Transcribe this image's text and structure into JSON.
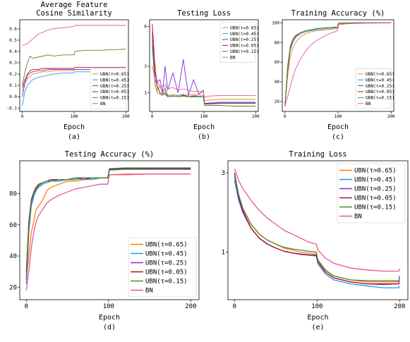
{
  "figure": {
    "panels": [
      {
        "id": "a",
        "title": [
          "Average Feature",
          "Cosine Similarity"
        ],
        "xlabel": "Epoch",
        "caption": "(a)",
        "xlim": [
          -5,
          205
        ],
        "ylim": [
          -0.13,
          0.68
        ],
        "xticks": [
          0,
          100,
          200
        ],
        "yticks": [
          -0.1,
          0.0,
          0.1,
          0.2,
          0.3,
          0.4,
          0.5,
          0.6
        ],
        "ytick_labels": [
          "-0.1",
          "0.0",
          "0.1",
          "0.2",
          "0.3",
          "0.4",
          "0.5",
          "0.6"
        ],
        "legend_position": "bottom-right"
      },
      {
        "id": "b",
        "title": [
          "Testing Loss"
        ],
        "xlabel": "Epoch",
        "caption": "(b)",
        "xlim": [
          -5,
          205
        ],
        "ylim": [
          -0.4,
          6.5
        ],
        "xticks": [
          0,
          100,
          200
        ],
        "yticks": [
          1,
          3,
          6
        ],
        "ytick_labels": [
          "1",
          "3",
          "6"
        ],
        "legend_position": "top-right"
      },
      {
        "id": "c",
        "title": [
          "Training Accuracy (%)"
        ],
        "xlabel": "Epoch",
        "caption": "(c)",
        "xlim": [
          -5,
          205
        ],
        "ylim": [
          10,
          103
        ],
        "xticks": [
          0,
          100,
          200
        ],
        "yticks": [
          20,
          40,
          60,
          80,
          100
        ],
        "ytick_labels": [
          "20",
          "40",
          "60",
          "80",
          "100"
        ],
        "legend_position": "bottom-right"
      },
      {
        "id": "d",
        "title": [
          "Testing Accuracy (%)"
        ],
        "xlabel": "Epoch",
        "caption": "(d)",
        "xlim": [
          -8,
          210
        ],
        "ylim": [
          12,
          101
        ],
        "xticks": [
          0,
          100,
          200
        ],
        "yticks": [
          20,
          40,
          60,
          80
        ],
        "ytick_labels": [
          "20",
          "40",
          "60",
          "80"
        ],
        "legend_position": "bottom-right"
      },
      {
        "id": "e",
        "title": [
          "Training Loss"
        ],
        "xlabel": "Epoch",
        "caption": "(e)",
        "xlim": [
          -8,
          210
        ],
        "ylim": [
          -0.2,
          3.3
        ],
        "xticks": [
          0,
          100,
          200
        ],
        "yticks": [
          1,
          3
        ],
        "ytick_labels": [
          "1",
          "3"
        ],
        "legend_position": "top-right"
      }
    ]
  },
  "chart_data": [
    {
      "panel": "a",
      "type": "line",
      "title": "Average Feature Cosine Similarity",
      "xlabel": "Epoch",
      "ylabel": "",
      "x": [
        0,
        5,
        10,
        15,
        20,
        30,
        40,
        50,
        60,
        80,
        100,
        101,
        120,
        150,
        200
      ],
      "ylim": [
        -0.13,
        0.68
      ],
      "series": [
        {
          "name": "UBN(τ=0.65)",
          "color": "#ff7f0e",
          "values": [
            0.05,
            0.12,
            0.16,
            0.18,
            0.2,
            0.21,
            0.22,
            0.22,
            0.23,
            0.23,
            0.23,
            0.24,
            0.24,
            0.24,
            0.24
          ]
        },
        {
          "name": "UBN(τ=0.45)",
          "color": "#1f9fe0",
          "values": [
            -0.08,
            0.05,
            0.1,
            0.13,
            0.15,
            0.17,
            0.18,
            0.19,
            0.2,
            0.21,
            0.21,
            0.22,
            0.22,
            0.22,
            0.22
          ]
        },
        {
          "name": "UBN(τ=0.25)",
          "color": "#7b2fd8",
          "values": [
            0.0,
            0.12,
            0.19,
            0.21,
            0.22,
            0.23,
            0.23,
            0.24,
            0.24,
            0.24,
            0.24,
            0.24,
            0.24,
            0.24,
            0.24
          ]
        },
        {
          "name": "UBN(τ=0.05)",
          "color": "#b0102a",
          "values": [
            0.08,
            0.15,
            0.2,
            0.23,
            0.24,
            0.24,
            0.25,
            0.25,
            0.25,
            0.25,
            0.25,
            0.26,
            0.26,
            0.26,
            0.26
          ]
        },
        {
          "name": "UBN(τ=0.15)",
          "color": "#4a8a2a",
          "values": [
            0.1,
            0.22,
            0.3,
            0.36,
            0.34,
            0.35,
            0.36,
            0.37,
            0.36,
            0.37,
            0.37,
            0.4,
            0.41,
            0.41,
            0.42
          ]
        },
        {
          "name": "BN",
          "color": "#e8549a",
          "values": [
            0.45,
            0.46,
            0.47,
            0.49,
            0.51,
            0.55,
            0.57,
            0.59,
            0.6,
            0.61,
            0.62,
            0.63,
            0.63,
            0.63,
            0.63
          ]
        }
      ]
    },
    {
      "panel": "b",
      "type": "line",
      "title": "Testing Loss",
      "xlabel": "Epoch",
      "ylabel": "",
      "x": [
        0,
        3,
        6,
        10,
        15,
        20,
        25,
        30,
        40,
        50,
        60,
        70,
        80,
        90,
        99,
        101,
        110,
        130,
        160,
        200
      ],
      "ylim": [
        -0.4,
        6.5
      ],
      "series": [
        {
          "name": "UBN(τ=0.65)",
          "color": "#ff7f0e",
          "values": [
            6.0,
            4.0,
            3.0,
            1.2,
            1.5,
            1.0,
            1.2,
            0.8,
            0.9,
            0.8,
            0.85,
            0.8,
            0.9,
            0.85,
            0.8,
            0.4,
            0.45,
            0.5,
            0.5,
            0.5
          ]
        },
        {
          "name": "UBN(τ=0.45)",
          "color": "#1f9fe0",
          "values": [
            5.0,
            3.5,
            2.0,
            1.5,
            1.0,
            0.9,
            1.4,
            0.8,
            0.7,
            0.8,
            0.9,
            0.7,
            0.8,
            0.75,
            0.7,
            0.2,
            0.25,
            0.3,
            0.3,
            0.3
          ]
        },
        {
          "name": "UBN(τ=0.25)",
          "color": "#7b2fd8",
          "values": [
            5.5,
            3.0,
            2.5,
            1.8,
            2.0,
            1.0,
            3.0,
            1.2,
            2.5,
            1.0,
            3.5,
            0.8,
            2.0,
            0.9,
            1.2,
            0.2,
            0.2,
            0.25,
            0.25,
            0.25
          ]
        },
        {
          "name": "UBN(τ=0.05)",
          "color": "#b0102a",
          "values": [
            6.2,
            4.5,
            2.0,
            1.5,
            1.0,
            0.9,
            1.0,
            0.7,
            0.8,
            0.7,
            0.8,
            0.7,
            0.75,
            0.7,
            0.7,
            0.15,
            0.15,
            0.2,
            0.2,
            0.2
          ]
        },
        {
          "name": "UBN(τ=0.15)",
          "color": "#4a8a2a",
          "values": [
            4.5,
            3.0,
            1.5,
            1.0,
            0.9,
            0.8,
            0.9,
            0.7,
            0.8,
            0.7,
            0.75,
            0.7,
            0.7,
            0.7,
            0.7,
            0.05,
            0.05,
            0.05,
            0.0,
            0.0
          ]
        },
        {
          "name": "BN",
          "color": "#e8549a",
          "values": [
            3.0,
            2.5,
            2.0,
            1.8,
            1.5,
            1.5,
            1.6,
            1.3,
            1.4,
            1.2,
            1.3,
            1.2,
            1.1,
            1.1,
            1.0,
            0.7,
            0.75,
            0.8,
            0.8,
            0.8
          ]
        }
      ]
    },
    {
      "panel": "c",
      "type": "line",
      "title": "Training Accuracy (%)",
      "xlabel": "Epoch",
      "ylabel": "",
      "x": [
        0,
        5,
        10,
        15,
        20,
        30,
        40,
        50,
        60,
        80,
        99,
        101,
        120,
        150,
        200
      ],
      "ylim": [
        10,
        103
      ],
      "series": [
        {
          "name": "UBN(τ=0.65)",
          "color": "#ff7f0e",
          "values": [
            15,
            45,
            65,
            74,
            80,
            86,
            89,
            91,
            92,
            93,
            94,
            99,
            99.5,
            99.7,
            99.8
          ]
        },
        {
          "name": "UBN(τ=0.45)",
          "color": "#1f9fe0",
          "values": [
            15,
            50,
            72,
            80,
            85,
            89,
            91,
            92,
            93,
            94,
            95,
            99.5,
            99.7,
            99.8,
            99.9
          ]
        },
        {
          "name": "UBN(τ=0.25)",
          "color": "#7b2fd8",
          "values": [
            15,
            52,
            74,
            82,
            86,
            90,
            92,
            93,
            94,
            95,
            95.5,
            99.6,
            99.8,
            99.9,
            99.9
          ]
        },
        {
          "name": "UBN(τ=0.05)",
          "color": "#b0102a",
          "values": [
            15,
            55,
            76,
            83,
            87,
            90,
            92,
            93,
            94,
            95,
            95.5,
            99.6,
            99.8,
            99.9,
            99.9
          ]
        },
        {
          "name": "UBN(τ=0.15)",
          "color": "#4a8a2a",
          "values": [
            15,
            53,
            75,
            82,
            86,
            90,
            92,
            93,
            94,
            95,
            95.5,
            99.6,
            99.8,
            99.9,
            99.9
          ]
        },
        {
          "name": "BN",
          "color": "#e8549a",
          "values": [
            15,
            25,
            35,
            45,
            53,
            64,
            72,
            78,
            82,
            88,
            92,
            98,
            99,
            99.5,
            99.8
          ]
        }
      ]
    },
    {
      "panel": "d",
      "type": "line",
      "title": "Testing Accuracy (%)",
      "xlabel": "Epoch",
      "ylabel": "",
      "x": [
        0,
        3,
        6,
        9,
        12,
        15,
        20,
        25,
        30,
        40,
        50,
        60,
        70,
        80,
        90,
        99,
        101,
        120,
        150,
        200
      ],
      "ylim": [
        12,
        101
      ],
      "series": [
        {
          "name": "UBN(τ=0.65)",
          "color": "#ff7f0e",
          "values": [
            25,
            40,
            55,
            62,
            70,
            72,
            76,
            82,
            84,
            86,
            88,
            88,
            89,
            89,
            90,
            90,
            92,
            92.5,
            92.5,
            92.5
          ]
        },
        {
          "name": "UBN(τ=0.45)",
          "color": "#1f9fe0",
          "values": [
            22,
            55,
            72,
            78,
            82,
            84,
            86,
            87,
            88,
            88,
            89,
            89,
            90,
            89,
            90,
            90,
            95,
            95.5,
            95.5,
            95.5
          ]
        },
        {
          "name": "UBN(τ=0.25)",
          "color": "#7b2fd8",
          "values": [
            25,
            58,
            74,
            80,
            83,
            85,
            87,
            88,
            88,
            89,
            89,
            90,
            89,
            90,
            90,
            90,
            95.5,
            96,
            96,
            96
          ]
        },
        {
          "name": "UBN(τ=0.05)",
          "color": "#b0102a",
          "values": [
            30,
            62,
            76,
            81,
            84,
            86,
            87,
            88,
            89,
            89,
            89,
            90,
            90,
            90,
            90,
            90,
            95.5,
            96,
            96,
            96
          ]
        },
        {
          "name": "UBN(τ=0.15)",
          "color": "#4a8a2a",
          "values": [
            28,
            60,
            75,
            80,
            83,
            85,
            87,
            88,
            88,
            89,
            89,
            90,
            90,
            90,
            90,
            90,
            96,
            96.5,
            96.5,
            96.5
          ]
        },
        {
          "name": "BN",
          "color": "#e8549a",
          "values": [
            18,
            30,
            45,
            55,
            62,
            66,
            70,
            74,
            76,
            79,
            81,
            83,
            84,
            85,
            86,
            86,
            92,
            92,
            92.5,
            92.5
          ]
        }
      ]
    },
    {
      "panel": "e",
      "type": "line",
      "title": "Training Loss",
      "xlabel": "Epoch",
      "ylabel": "",
      "x": [
        0,
        5,
        10,
        20,
        30,
        40,
        50,
        60,
        70,
        80,
        90,
        99,
        101,
        110,
        120,
        140,
        160,
        180,
        199,
        200
      ],
      "ylim": [
        -0.2,
        3.3
      ],
      "series": [
        {
          "name": "UBN(τ=0.65)",
          "color": "#ff7f0e",
          "values": [
            2.9,
            2.4,
            2.1,
            1.7,
            1.45,
            1.3,
            1.2,
            1.1,
            1.05,
            1.0,
            0.97,
            0.95,
            0.8,
            0.55,
            0.4,
            0.3,
            0.25,
            0.25,
            0.25,
            0.25
          ]
        },
        {
          "name": "UBN(τ=0.45)",
          "color": "#1f9fe0",
          "values": [
            2.8,
            2.3,
            2.0,
            1.6,
            1.35,
            1.2,
            1.1,
            1.02,
            0.98,
            0.94,
            0.92,
            0.9,
            0.7,
            0.45,
            0.3,
            0.2,
            0.15,
            0.1,
            0.1,
            0.15
          ]
        },
        {
          "name": "UBN(τ=0.25)",
          "color": "#7b2fd8",
          "values": [
            2.9,
            2.35,
            2.0,
            1.6,
            1.35,
            1.2,
            1.1,
            1.02,
            0.98,
            0.95,
            0.93,
            0.92,
            0.75,
            0.5,
            0.35,
            0.25,
            0.2,
            0.18,
            0.2,
            0.4
          ]
        },
        {
          "name": "UBN(τ=0.05)",
          "color": "#b0102a",
          "values": [
            3.0,
            2.4,
            2.05,
            1.6,
            1.35,
            1.2,
            1.1,
            1.02,
            0.98,
            0.95,
            0.93,
            0.92,
            0.75,
            0.5,
            0.35,
            0.25,
            0.2,
            0.2,
            0.2,
            0.2
          ]
        },
        {
          "name": "UBN(τ=0.15)",
          "color": "#4a8a2a",
          "values": [
            2.95,
            2.45,
            2.1,
            1.7,
            1.45,
            1.3,
            1.2,
            1.12,
            1.08,
            1.05,
            1.02,
            1.0,
            0.8,
            0.55,
            0.4,
            0.3,
            0.28,
            0.28,
            0.28,
            0.28
          ]
        },
        {
          "name": "BN",
          "color": "#e8549a",
          "values": [
            3.1,
            2.8,
            2.6,
            2.3,
            2.05,
            1.85,
            1.7,
            1.55,
            1.45,
            1.35,
            1.25,
            1.2,
            1.05,
            0.85,
            0.72,
            0.6,
            0.55,
            0.52,
            0.52,
            0.58
          ]
        }
      ]
    }
  ]
}
